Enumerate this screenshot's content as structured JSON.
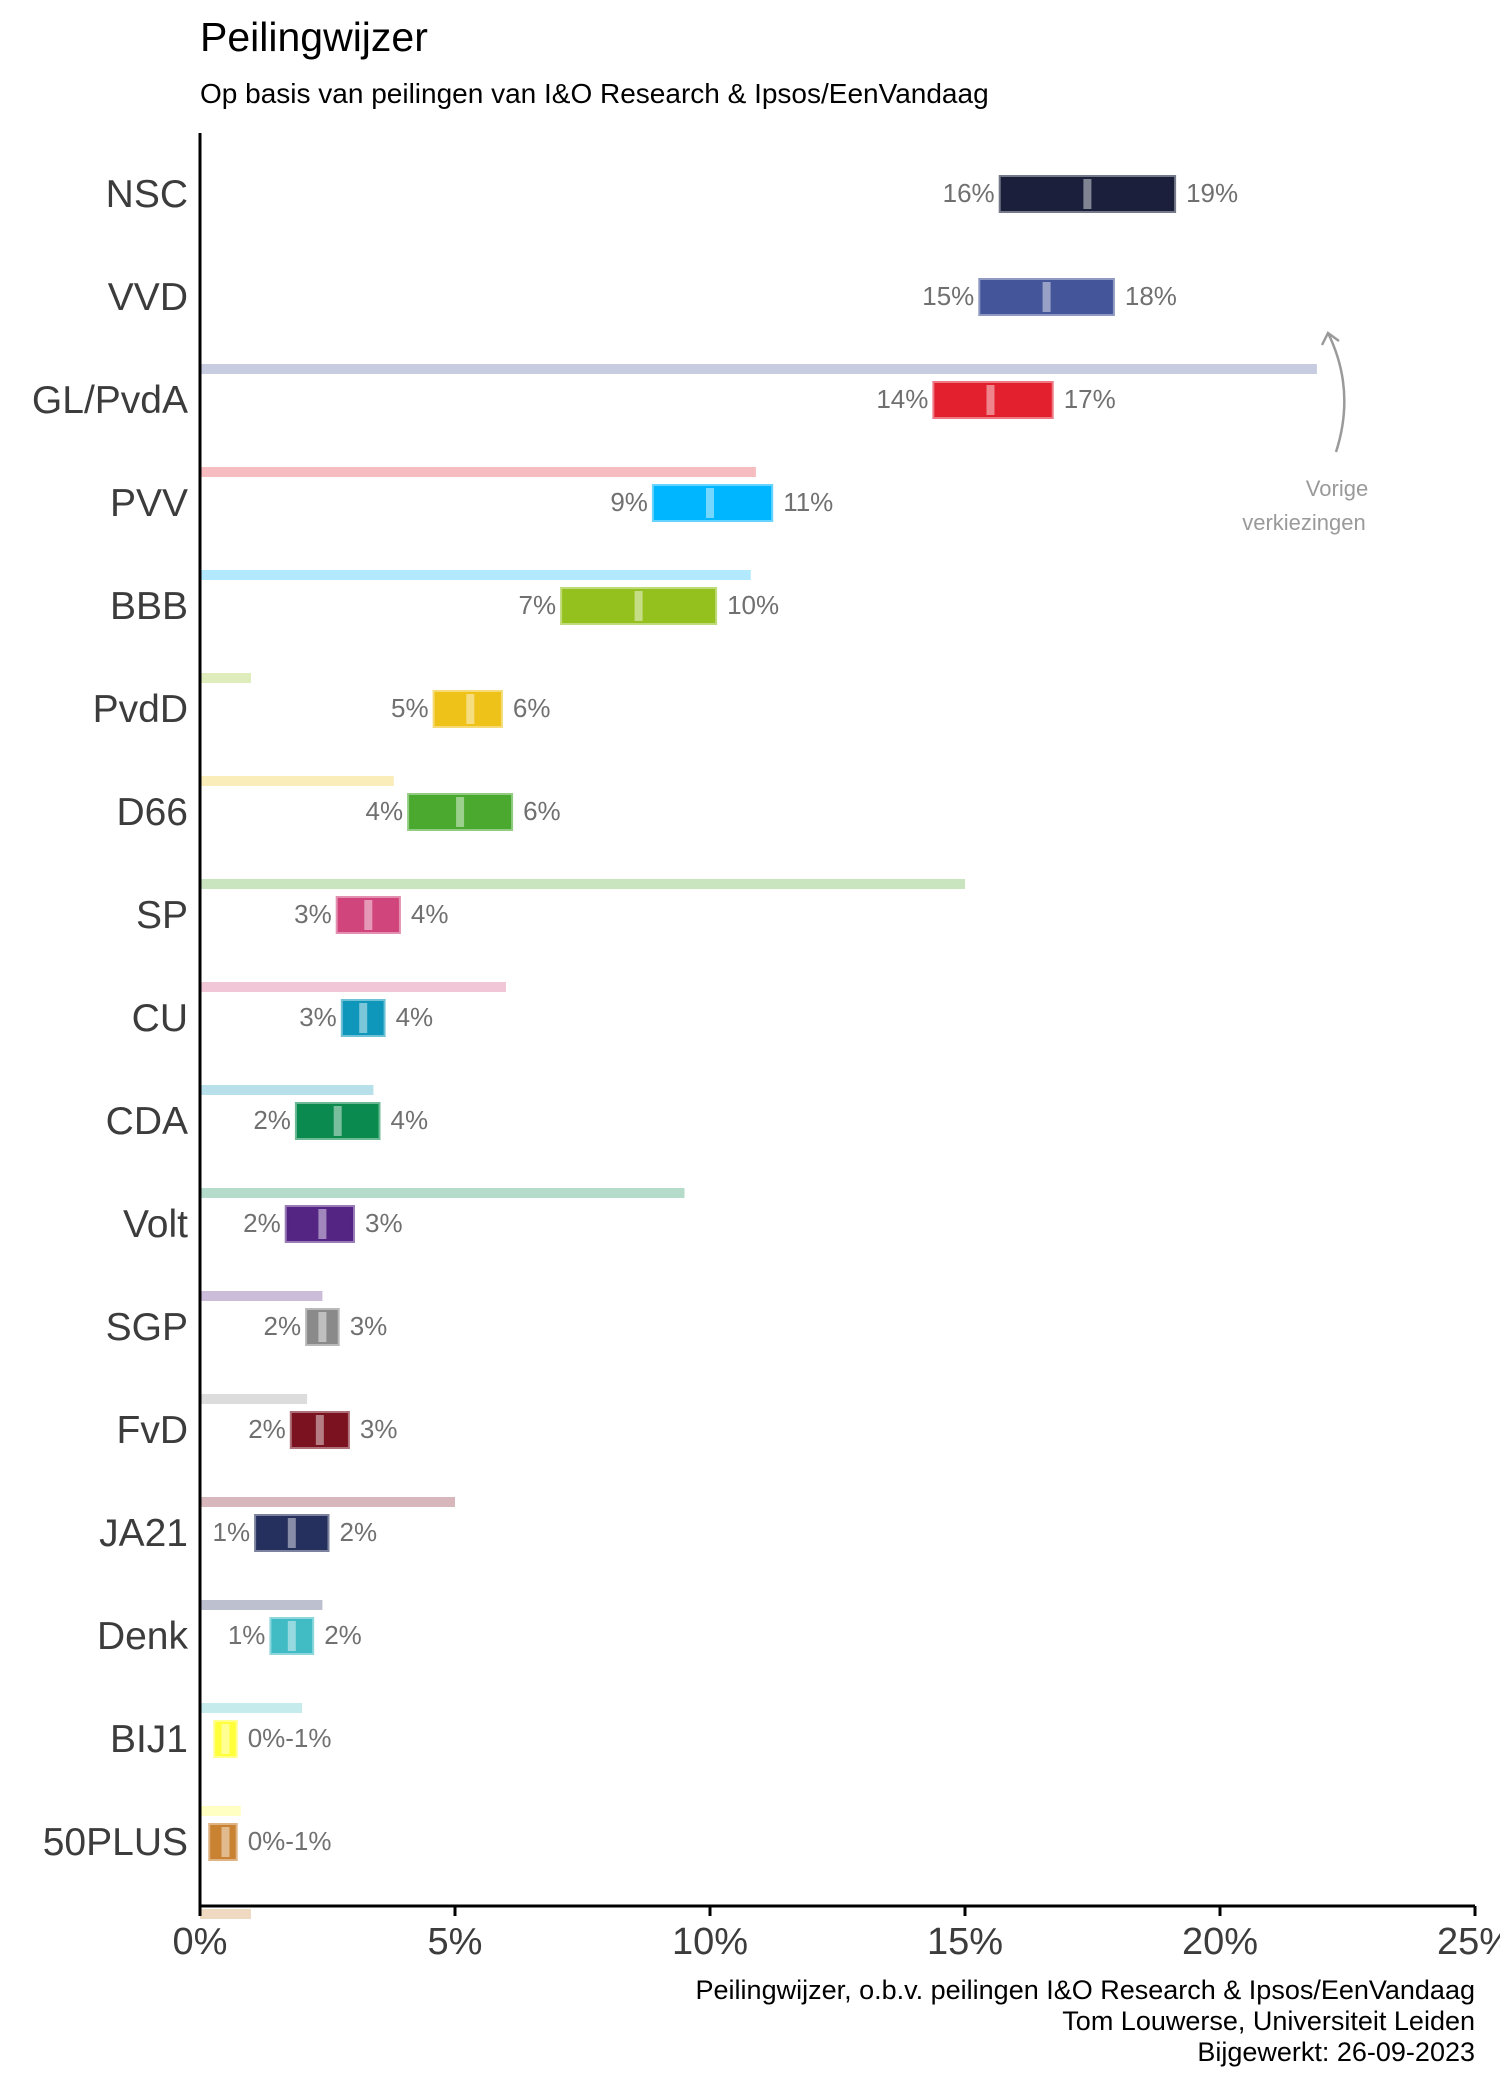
{
  "header": {
    "title": "Peilingwijzer",
    "subtitle": "Op basis van peilingen van I&O Research & Ipsos/EenVandaag"
  },
  "annotation": {
    "line1": "Vorige",
    "line2": "verkiezingen"
  },
  "caption": {
    "line1": "Peilingwijzer, o.b.v. peilingen I&O Research & Ipsos/EenVandaag",
    "line2": "Tom Louwerse, Universiteit Leiden",
    "line3": "Bijgewerkt: 26-09-2023"
  },
  "chart_data": {
    "type": "bar",
    "orientation": "horizontal",
    "title": "Peilingwijzer",
    "subtitle": "Op basis van peilingen van I&O Research & Ipsos/EenVandaag",
    "xlim": [
      0,
      25
    ],
    "x_ticks": [
      0,
      5,
      10,
      15,
      20,
      25
    ],
    "x_tick_labels": [
      "0%",
      "5%",
      "10%",
      "15%",
      "20%",
      "25%"
    ],
    "grid": false,
    "parties": [
      {
        "name": "NSC",
        "low": 15.7,
        "high": 19.1,
        "mid": 17.4,
        "low_label": "16%",
        "high_label": "19%",
        "previous": null,
        "color": "#1b1f3b"
      },
      {
        "name": "VVD",
        "low": 15.3,
        "high": 17.9,
        "mid": 16.6,
        "low_label": "15%",
        "high_label": "18%",
        "previous": 21.9,
        "color": "#45559a"
      },
      {
        "name": "GL/PvdA",
        "low": 14.4,
        "high": 16.7,
        "mid": 15.5,
        "low_label": "14%",
        "high_label": "17%",
        "previous": 10.9,
        "color": "#e2202e"
      },
      {
        "name": "PVV",
        "low": 8.9,
        "high": 11.2,
        "mid": 10.0,
        "low_label": "9%",
        "high_label": "11%",
        "previous": 10.8,
        "color": "#00b7ff"
      },
      {
        "name": "BBB",
        "low": 7.1,
        "high": 10.1,
        "mid": 8.6,
        "low_label": "7%",
        "high_label": "10%",
        "previous": 1.0,
        "color": "#95c11f"
      },
      {
        "name": "PvdD",
        "low": 4.6,
        "high": 5.9,
        "mid": 5.3,
        "low_label": "5%",
        "high_label": "6%",
        "previous": 3.8,
        "color": "#eec219"
      },
      {
        "name": "D66",
        "low": 4.1,
        "high": 6.1,
        "mid": 5.1,
        "low_label": "4%",
        "high_label": "6%",
        "previous": 15.0,
        "color": "#4aa92e"
      },
      {
        "name": "SP",
        "low": 2.7,
        "high": 3.9,
        "mid": 3.3,
        "low_label": "3%",
        "high_label": "4%",
        "previous": 6.0,
        "color": "#d0457c"
      },
      {
        "name": "CU",
        "low": 2.8,
        "high": 3.6,
        "mid": 3.2,
        "low_label": "3%",
        "high_label": "4%",
        "previous": 3.4,
        "color": "#0f97bb"
      },
      {
        "name": "CDA",
        "low": 1.9,
        "high": 3.5,
        "mid": 2.7,
        "low_label": "2%",
        "high_label": "4%",
        "previous": 9.5,
        "color": "#0b8a4f"
      },
      {
        "name": "Volt",
        "low": 1.7,
        "high": 3.0,
        "mid": 2.4,
        "low_label": "2%",
        "high_label": "3%",
        "previous": 2.4,
        "color": "#542583"
      },
      {
        "name": "SGP",
        "low": 2.1,
        "high": 2.7,
        "mid": 2.4,
        "low_label": "2%",
        "high_label": "3%",
        "previous": 2.1,
        "color": "#8a8a8a"
      },
      {
        "name": "FvD",
        "low": 1.8,
        "high": 2.9,
        "mid": 2.35,
        "low_label": "2%",
        "high_label": "3%",
        "previous": 5.0,
        "color": "#7a1220"
      },
      {
        "name": "JA21",
        "low": 1.1,
        "high": 2.5,
        "mid": 1.8,
        "low_label": "1%",
        "high_label": "2%",
        "previous": 2.4,
        "color": "#26305e"
      },
      {
        "name": "Denk",
        "low": 1.4,
        "high": 2.2,
        "mid": 1.8,
        "low_label": "1%",
        "high_label": "2%",
        "previous": 2.0,
        "color": "#41bcc5"
      },
      {
        "name": "BIJ1",
        "low": 0.3,
        "high": 0.7,
        "mid": 0.5,
        "low_label": "",
        "high_label": "0%-1%",
        "previous": 0.8,
        "color": "#ffff3a"
      },
      {
        "name": "50PLUS",
        "low": 0.2,
        "high": 0.7,
        "mid": 0.5,
        "low_label": "",
        "high_label": "0%-1%",
        "previous": 1.0,
        "color": "#c98232"
      }
    ]
  }
}
